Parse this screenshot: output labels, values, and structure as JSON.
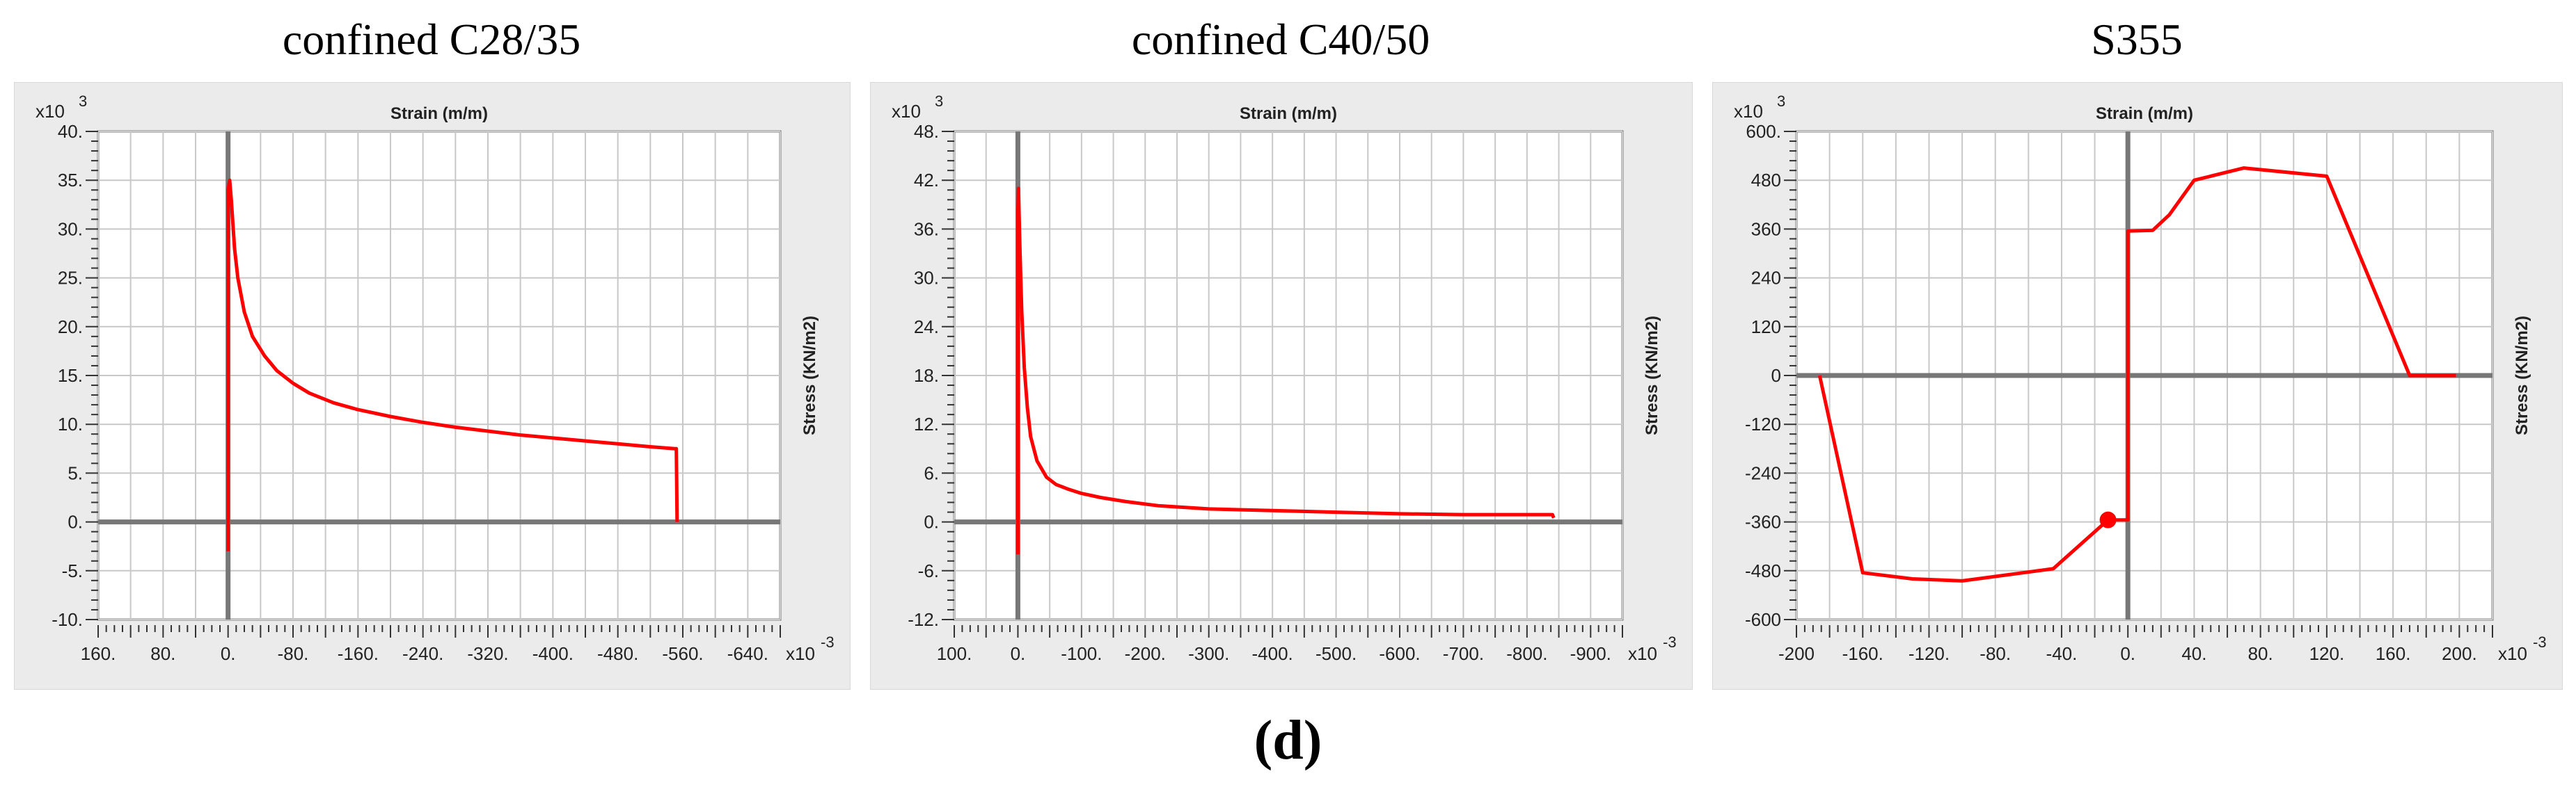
{
  "figure_label": "(d)",
  "chart_data": [
    {
      "type": "line",
      "title": "confined C28/35",
      "xlabel": "Strain   (m/m)",
      "ylabel": "Stress   (KN/m2)",
      "x_multiplier": "x10",
      "x_exponent": "-3",
      "y_multiplier": "x10",
      "y_exponent": "3",
      "x_reversed": true,
      "xlim": [
        160,
        -680
      ],
      "ylim": [
        -10,
        40
      ],
      "x_ticks": [
        160,
        120,
        80,
        40,
        0,
        -40,
        -80,
        -120,
        -160,
        -200,
        -240,
        -280,
        -320,
        -360,
        -400,
        -440,
        -480,
        -520,
        -560,
        -600,
        -640,
        -680
      ],
      "x_tick_labels": [
        "160.",
        "80.",
        "0.",
        "-80.",
        "-160.",
        "-240.",
        "-320.",
        "-400.",
        "-480.",
        "-560.",
        "-640."
      ],
      "x_tick_label_values": [
        160,
        80,
        0,
        -80,
        -160,
        -240,
        -320,
        -400,
        -480,
        -560,
        -640
      ],
      "y_ticks": [
        -10,
        -5,
        0,
        5,
        10,
        15,
        20,
        25,
        30,
        35,
        40
      ],
      "y_tick_labels": [
        "-10.",
        "-5.",
        "0.",
        "5.",
        "10.",
        "15.",
        "20.",
        "25.",
        "30.",
        "35.",
        "40."
      ],
      "grid": true,
      "series": [
        {
          "color": "#ff0000",
          "x": [
            0,
            0,
            -2,
            -4,
            -8,
            -12,
            -20,
            -30,
            -45,
            -60,
            -80,
            -100,
            -130,
            -160,
            -200,
            -240,
            -280,
            -320,
            -360,
            -400,
            -440,
            -480,
            -520,
            -550,
            -552,
            -553
          ],
          "y": [
            -3,
            34,
            35,
            33,
            28,
            25,
            21.5,
            19,
            17,
            15.5,
            14.2,
            13.2,
            12.2,
            11.5,
            10.8,
            10.2,
            9.7,
            9.3,
            8.9,
            8.6,
            8.3,
            8.0,
            7.7,
            7.5,
            7.5,
            0
          ]
        }
      ]
    },
    {
      "type": "line",
      "title": "confined C40/50",
      "xlabel": "Strain   (m/m)",
      "ylabel": "Stress   (KN/m2)",
      "x_multiplier": "x10",
      "x_exponent": "-3",
      "y_multiplier": "x10",
      "y_exponent": "3",
      "x_reversed": true,
      "xlim": [
        100,
        -950
      ],
      "ylim": [
        -12,
        48
      ],
      "x_ticks": [
        100,
        50,
        0,
        -50,
        -100,
        -150,
        -200,
        -250,
        -300,
        -350,
        -400,
        -450,
        -500,
        -550,
        -600,
        -650,
        -700,
        -750,
        -800,
        -850,
        -900,
        -950
      ],
      "x_tick_labels": [
        "100.",
        "0.",
        "-100.",
        "-200.",
        "-300.",
        "-400.",
        "-500.",
        "-600.",
        "-700.",
        "-800.",
        "-900."
      ],
      "x_tick_label_values": [
        100,
        0,
        -100,
        -200,
        -300,
        -400,
        -500,
        -600,
        -700,
        -800,
        -900
      ],
      "y_ticks": [
        -12,
        -6,
        0,
        6,
        12,
        18,
        24,
        30,
        36,
        42,
        48
      ],
      "y_tick_labels": [
        "-12.",
        "-6.",
        "0.",
        "6.",
        "12.",
        "18.",
        "24.",
        "30.",
        "36.",
        "42.",
        "48."
      ],
      "grid": true,
      "series": [
        {
          "color": "#ff0000",
          "x": [
            0,
            0,
            -1,
            -3,
            -6,
            -10,
            -15,
            -20,
            -30,
            -45,
            -60,
            -80,
            -100,
            -130,
            -170,
            -220,
            -300,
            -400,
            -500,
            -600,
            -700,
            -800,
            -840,
            -842
          ],
          "y": [
            -4,
            38,
            41,
            34,
            26,
            19,
            14,
            10.5,
            7.5,
            5.5,
            4.6,
            4.0,
            3.5,
            3.0,
            2.5,
            2.0,
            1.6,
            1.4,
            1.2,
            1.0,
            0.9,
            0.9,
            0.9,
            0.5
          ]
        }
      ]
    },
    {
      "type": "line",
      "title": "S355",
      "xlabel": "Strain   (m/m)",
      "ylabel": "Stress   (KN/m2)",
      "x_multiplier": "x10",
      "x_exponent": "-3",
      "y_multiplier": "x10",
      "y_exponent": "3",
      "x_reversed": false,
      "xlim": [
        -200,
        220
      ],
      "ylim": [
        -600,
        600
      ],
      "x_ticks": [
        -200,
        -180,
        -160,
        -140,
        -120,
        -100,
        -80,
        -60,
        -40,
        -20,
        0,
        20,
        40,
        60,
        80,
        100,
        120,
        140,
        160,
        180,
        200,
        220
      ],
      "x_tick_labels": [
        "-200",
        "-160.",
        "-120.",
        "-80.",
        "-40.",
        "0.",
        "40.",
        "80.",
        "120.",
        "160.",
        "200."
      ],
      "x_tick_label_values": [
        -200,
        -160,
        -120,
        -80,
        -40,
        0,
        40,
        80,
        120,
        160,
        200
      ],
      "y_ticks": [
        -600,
        -480,
        -360,
        -240,
        -120,
        0,
        120,
        240,
        360,
        480,
        600
      ],
      "y_tick_labels": [
        "-600",
        "-480",
        "-360",
        "-240",
        "-120",
        "0",
        "120",
        "240",
        "360",
        "480",
        "600."
      ],
      "grid": true,
      "marker": {
        "x": -12,
        "y": -355,
        "color": "#ff0000"
      },
      "series": [
        {
          "color": "#ff0000",
          "x": [
            -186,
            -160,
            -130,
            -100,
            -45,
            -12,
            0,
            0,
            15,
            25,
            40,
            70,
            120,
            170,
            198
          ],
          "y": [
            0,
            -485,
            -500,
            -505,
            -475,
            -355,
            -355,
            355,
            357,
            395,
            480,
            510,
            490,
            0,
            0
          ]
        }
      ]
    }
  ]
}
